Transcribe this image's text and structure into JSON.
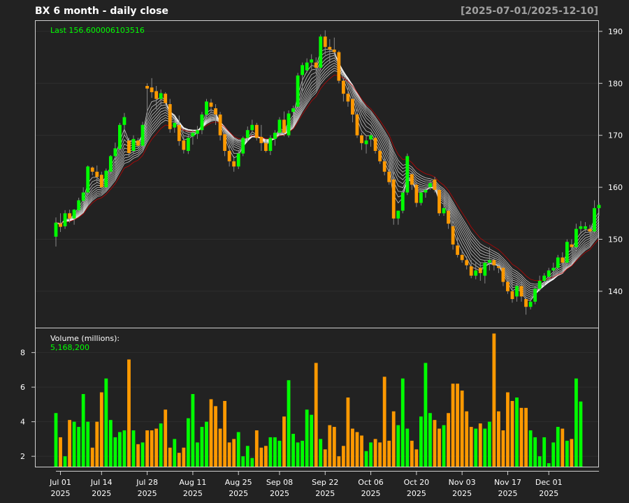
{
  "header": {
    "title": "BX  6 month - daily close",
    "range": "[2025-07-01/2025-12-10]"
  },
  "price_panel": {
    "last_label": "Last 156.600006103516"
  },
  "volume_panel": {
    "label": "Volume (millions):",
    "last_value": "5,168,200"
  },
  "colors": {
    "background": "#222222",
    "up": "#00ff00",
    "down": "#ff9900",
    "text": "#ffffff",
    "last_text": "#00ff00",
    "range_text": "#a0a0a0",
    "ma_lines": "#ffffff",
    "ma_slow": "#cc0000"
  },
  "chart_data": [
    {
      "type": "candlestick",
      "title": "BX  6 month - daily close",
      "ylim": [
        133,
        192
      ],
      "y_ticks": [
        140,
        150,
        160,
        170,
        180,
        190
      ],
      "x_ticks": [
        {
          "idx": 1,
          "label": "Jul 01",
          "year": "2025"
        },
        {
          "idx": 10,
          "label": "Jul 14",
          "year": "2025"
        },
        {
          "idx": 20,
          "label": "Jul 28",
          "year": "2025"
        },
        {
          "idx": 30,
          "label": "Aug 11",
          "year": "2025"
        },
        {
          "idx": 40,
          "label": "Aug 25",
          "year": "2025"
        },
        {
          "idx": 49,
          "label": "Sep 08",
          "year": "2025"
        },
        {
          "idx": 59,
          "label": "Sep 22",
          "year": "2025"
        },
        {
          "idx": 69,
          "label": "Oct 06",
          "year": "2025"
        },
        {
          "idx": 79,
          "label": "Oct 20",
          "year": "2025"
        },
        {
          "idx": 89,
          "label": "Nov 03",
          "year": "2025"
        },
        {
          "idx": 99,
          "label": "Nov 17",
          "year": "2025"
        },
        {
          "idx": 108,
          "label": "Dec 01",
          "year": "2025"
        }
      ],
      "ohlc": [
        [
          150.5,
          154.2,
          148.6,
          153.2
        ],
        [
          153.0,
          155.0,
          151.4,
          152.4
        ],
        [
          152.5,
          155.6,
          152.0,
          155.0
        ],
        [
          155.0,
          155.7,
          153.2,
          154.0
        ],
        [
          154.0,
          155.8,
          152.8,
          155.7
        ],
        [
          155.6,
          158.0,
          155.2,
          157.5
        ],
        [
          157.4,
          160.0,
          156.3,
          159.0
        ],
        [
          159.0,
          164.2,
          158.3,
          164.0
        ],
        [
          163.8,
          164.0,
          162.3,
          163.0
        ],
        [
          163.0,
          164.2,
          161.0,
          162.0
        ],
        [
          162.4,
          163.0,
          159.8,
          160.0
        ],
        [
          160.0,
          163.6,
          159.5,
          163.2
        ],
        [
          163.0,
          166.2,
          162.5,
          166.0
        ],
        [
          166.0,
          168.6,
          164.5,
          167.5
        ],
        [
          167.4,
          172.4,
          166.8,
          172.0
        ],
        [
          172.0,
          174.3,
          170.0,
          173.5
        ],
        [
          169.0,
          169.5,
          166.0,
          166.6
        ],
        [
          167.0,
          170.0,
          166.5,
          169.3
        ],
        [
          169.0,
          169.5,
          167.6,
          168.0
        ],
        [
          168.0,
          172.6,
          167.5,
          172.0
        ],
        [
          179.5,
          180.0,
          174.0,
          179.0
        ],
        [
          179.2,
          181.0,
          177.2,
          178.3
        ],
        [
          178.5,
          179.5,
          175.0,
          177.0
        ],
        [
          177.0,
          178.8,
          175.6,
          178.1
        ],
        [
          178.0,
          178.3,
          175.8,
          176.2
        ],
        [
          176.0,
          177.0,
          170.5,
          171.2
        ],
        [
          171.5,
          172.8,
          170.5,
          172.4
        ],
        [
          172.0,
          173.8,
          168.0,
          168.9
        ],
        [
          169.0,
          170.0,
          166.5,
          167.2
        ],
        [
          167.0,
          170.3,
          166.4,
          169.5
        ],
        [
          169.8,
          171.0,
          168.2,
          170.5
        ],
        [
          170.3,
          171.8,
          169.3,
          171.0
        ],
        [
          171.0,
          174.5,
          170.2,
          174.0
        ],
        [
          174.0,
          177.0,
          173.0,
          176.5
        ],
        [
          176.3,
          177.0,
          174.5,
          175.5
        ],
        [
          175.2,
          176.0,
          172.0,
          174.0
        ],
        [
          174.0,
          174.5,
          169.0,
          170.0
        ],
        [
          170.2,
          170.8,
          166.0,
          167.0
        ],
        [
          167.0,
          168.0,
          164.0,
          165.0
        ],
        [
          165.0,
          166.0,
          163.0,
          164.0
        ],
        [
          164.0,
          167.0,
          163.5,
          166.5
        ],
        [
          166.5,
          169.8,
          166.0,
          169.5
        ],
        [
          169.5,
          171.7,
          168.8,
          171.0
        ],
        [
          171.0,
          173.0,
          170.5,
          172.0
        ],
        [
          172.0,
          172.4,
          169.0,
          169.5
        ],
        [
          169.7,
          172.0,
          167.0,
          168.5
        ],
        [
          168.5,
          169.3,
          166.7,
          167.0
        ],
        [
          167.0,
          170.0,
          166.2,
          169.5
        ],
        [
          169.3,
          171.0,
          168.0,
          170.5
        ],
        [
          170.5,
          173.5,
          169.9,
          173.0
        ],
        [
          173.0,
          174.6,
          169.8,
          170.5
        ],
        [
          170.0,
          174.8,
          169.6,
          174.2
        ],
        [
          174.5,
          175.7,
          173.3,
          175.2
        ],
        [
          175.5,
          182.0,
          175.0,
          181.5
        ],
        [
          181.6,
          184.0,
          178.5,
          183.5
        ],
        [
          182.5,
          184.8,
          182.0,
          184.0
        ],
        [
          184.0,
          185.6,
          182.7,
          184.6
        ],
        [
          184.0,
          185.0,
          181.8,
          183.0
        ],
        [
          183.0,
          189.4,
          182.5,
          189.0
        ],
        [
          189.0,
          190.2,
          185.5,
          187.0
        ],
        [
          187.0,
          188.5,
          184.0,
          186.5
        ],
        [
          186.5,
          188.8,
          185.2,
          186.0
        ],
        [
          186.0,
          186.3,
          180.0,
          180.5
        ],
        [
          180.5,
          181.0,
          176.5,
          178.0
        ],
        [
          178.0,
          179.2,
          175.5,
          176.5
        ],
        [
          177.0,
          177.5,
          172.5,
          174.0
        ],
        [
          174.0,
          175.0,
          169.5,
          170.0
        ],
        [
          170.0,
          170.5,
          167.2,
          168.5
        ],
        [
          168.3,
          169.8,
          166.5,
          169.0
        ],
        [
          169.2,
          170.5,
          167.8,
          170.0
        ],
        [
          169.5,
          170.0,
          166.5,
          167.0
        ],
        [
          167.0,
          167.6,
          164.5,
          165.0
        ],
        [
          165.0,
          165.5,
          162.3,
          163.0
        ],
        [
          163.0,
          163.8,
          160.5,
          161.0
        ],
        [
          161.5,
          163.0,
          152.8,
          154.0
        ],
        [
          154.0,
          155.5,
          152.8,
          155.5
        ],
        [
          155.5,
          159.5,
          155.0,
          159.0
        ],
        [
          159.0,
          166.5,
          158.5,
          166.0
        ],
        [
          162.5,
          163.0,
          159.5,
          160.5
        ],
        [
          160.5,
          161.0,
          156.2,
          157.0
        ],
        [
          157.0,
          159.5,
          156.5,
          159.0
        ],
        [
          159.0,
          160.0,
          158.0,
          159.5
        ],
        [
          160.0,
          161.2,
          159.5,
          160.8
        ],
        [
          161.5,
          162.0,
          159.0,
          159.5
        ],
        [
          159.5,
          160.0,
          154.5,
          155.0
        ],
        [
          155.0,
          157.0,
          154.5,
          156.0
        ],
        [
          155.5,
          156.0,
          152.0,
          153.0
        ],
        [
          152.5,
          153.8,
          148.0,
          149.0
        ],
        [
          148.8,
          150.5,
          146.5,
          147.0
        ],
        [
          147.0,
          148.0,
          145.5,
          146.0
        ],
        [
          146.0,
          146.7,
          144.2,
          145.0
        ],
        [
          144.8,
          146.0,
          142.5,
          143.0
        ],
        [
          143.0,
          145.5,
          142.3,
          144.0
        ],
        [
          144.5,
          145.6,
          142.0,
          143.5
        ],
        [
          143.0,
          146.0,
          141.5,
          145.5
        ],
        [
          145.5,
          148.5,
          144.0,
          146.0
        ],
        [
          146.0,
          146.5,
          144.0,
          145.0
        ],
        [
          144.8,
          145.5,
          143.5,
          144.5
        ],
        [
          144.5,
          145.0,
          141.0,
          141.8
        ],
        [
          141.8,
          143.0,
          139.5,
          140.0
        ],
        [
          140.0,
          142.5,
          137.8,
          138.5
        ],
        [
          139.0,
          141.5,
          138.0,
          141.0
        ],
        [
          141.0,
          142.0,
          138.0,
          139.0
        ],
        [
          138.5,
          139.0,
          135.5,
          137.0
        ],
        [
          137.0,
          138.5,
          136.5,
          138.0
        ],
        [
          138.0,
          141.0,
          137.5,
          140.5
        ],
        [
          140.5,
          143.0,
          140.0,
          142.0
        ],
        [
          142.0,
          143.5,
          141.0,
          143.0
        ],
        [
          142.8,
          144.5,
          142.0,
          144.0
        ],
        [
          144.0,
          145.5,
          143.0,
          144.5
        ],
        [
          144.5,
          147.0,
          144.0,
          146.5
        ],
        [
          146.5,
          147.5,
          145.0,
          145.5
        ],
        [
          145.5,
          150.0,
          145.0,
          149.5
        ],
        [
          149.0,
          150.0,
          148.0,
          148.5
        ],
        [
          148.5,
          153.0,
          147.5,
          152.0
        ],
        [
          152.0,
          153.5,
          151.0,
          152.5
        ],
        [
          152.0,
          153.3,
          151.5,
          152.5
        ],
        [
          152.0,
          152.8,
          151.0,
          151.5
        ],
        [
          151.5,
          157.5,
          151.0,
          156.0
        ],
        [
          156.0,
          157.0,
          154.5,
          156.6
        ]
      ]
    },
    {
      "type": "bar",
      "title": "Volume (millions):",
      "ylim": [
        1.4,
        9.4
      ],
      "y_ticks": [
        2,
        4,
        6,
        8
      ],
      "values": [
        4.5,
        3.1,
        2.0,
        4.1,
        4.0,
        3.7,
        5.6,
        4.0,
        2.5,
        4.0,
        5.7,
        6.5,
        4.1,
        3.1,
        3.4,
        3.5,
        7.6,
        3.5,
        2.7,
        2.8,
        3.5,
        3.5,
        3.6,
        3.9,
        4.7,
        2.5,
        3.0,
        2.2,
        2.5,
        4.2,
        5.6,
        2.8,
        3.7,
        4.0,
        5.3,
        4.9,
        3.6,
        5.2,
        2.8,
        3.0,
        3.4,
        2.0,
        2.6,
        1.9,
        3.5,
        2.5,
        2.6,
        3.1,
        3.1,
        2.9,
        4.3,
        6.4,
        3.3,
        2.8,
        2.9,
        4.7,
        4.4,
        7.4,
        3.0,
        2.4,
        3.8,
        3.7,
        2.0,
        2.6,
        5.4,
        3.6,
        3.4,
        3.2,
        2.3,
        2.8,
        3.0,
        2.8,
        6.6,
        2.9,
        4.6,
        3.8,
        6.5,
        3.6,
        2.9,
        2.4,
        4.3,
        7.4,
        4.5,
        4.1,
        3.6,
        3.8,
        4.5,
        6.2,
        6.2,
        5.8,
        4.6,
        3.7,
        3.6,
        3.9,
        3.6,
        4.0,
        9.1,
        4.6,
        3.5,
        5.7,
        5.2,
        5.4,
        4.8,
        4.8,
        3.5,
        3.1,
        2.0,
        3.1,
        1.6,
        2.8,
        3.7,
        3.6,
        2.9,
        3.0,
        6.5,
        5.168
      ]
    }
  ]
}
